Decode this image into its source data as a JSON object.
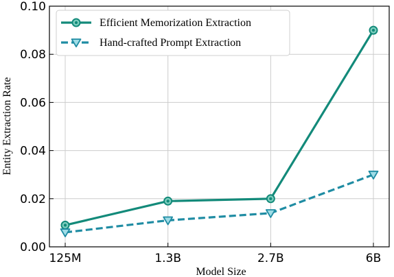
{
  "chart_data": {
    "type": "line",
    "categories": [
      "125M",
      "1.3B",
      "2.7B",
      "6B"
    ],
    "series": [
      {
        "name": "Efficient Memorization Extraction",
        "values": [
          0.009,
          0.019,
          0.02,
          0.09
        ],
        "color": "#138a7a",
        "line_style": "solid",
        "marker": "circle"
      },
      {
        "name": "Hand-crafted Prompt Extraction",
        "values": [
          0.006,
          0.011,
          0.014,
          0.03
        ],
        "color": "#1f8ca3",
        "line_style": "dashed",
        "marker": "triangle-down"
      }
    ],
    "xlabel": "Model  Size",
    "ylabel": "Entity  Extraction  Rate",
    "ylim": [
      0.0,
      0.1
    ],
    "yticks": [
      "0.00",
      "0.02",
      "0.04",
      "0.06",
      "0.08",
      "0.10"
    ],
    "grid": true,
    "legend_position": "top-left"
  }
}
